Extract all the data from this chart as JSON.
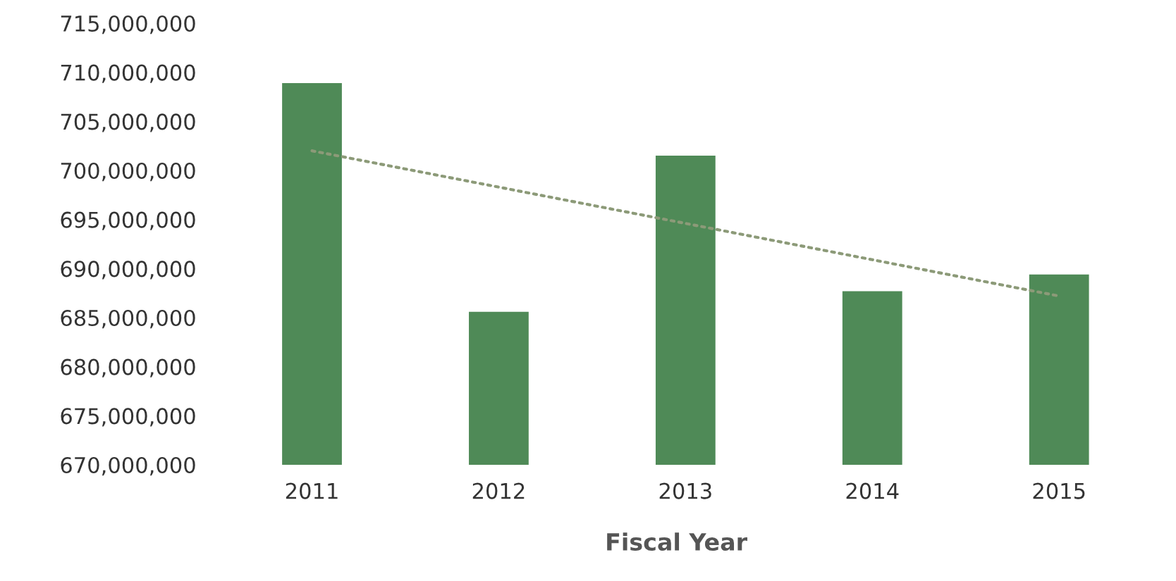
{
  "chart_data": {
    "type": "bar",
    "xlabel": "Fiscal Year",
    "categories": [
      "2011",
      "2012",
      "2013",
      "2014",
      "2015"
    ],
    "series": [
      {
        "color": "#4f8a57",
        "values": [
          708900000,
          685600000,
          701500000,
          687700000,
          689400000
        ]
      },
      {
        "type": "line",
        "color": "#8c9a78",
        "line_style": "dotted",
        "values": [
          702000000,
          698300000,
          694600000,
          690900000,
          687200000
        ]
      }
    ],
    "ylim": [
      670000000,
      715000000
    ],
    "yticks": [
      {
        "value": 670000000,
        "label": "670,000,000"
      },
      {
        "value": 675000000,
        "label": "675,000,000"
      },
      {
        "value": 680000000,
        "label": "680,000,000"
      },
      {
        "value": 685000000,
        "label": "685,000,000"
      },
      {
        "value": 690000000,
        "label": "690,000,000"
      },
      {
        "value": 695000000,
        "label": "695,000,000"
      },
      {
        "value": 700000000,
        "label": "700,000,000"
      },
      {
        "value": 705000000,
        "label": "705,000,000"
      },
      {
        "value": 710000000,
        "label": "710,000,000"
      },
      {
        "value": 715000000,
        "label": "715,000,000"
      }
    ],
    "grid": false
  }
}
